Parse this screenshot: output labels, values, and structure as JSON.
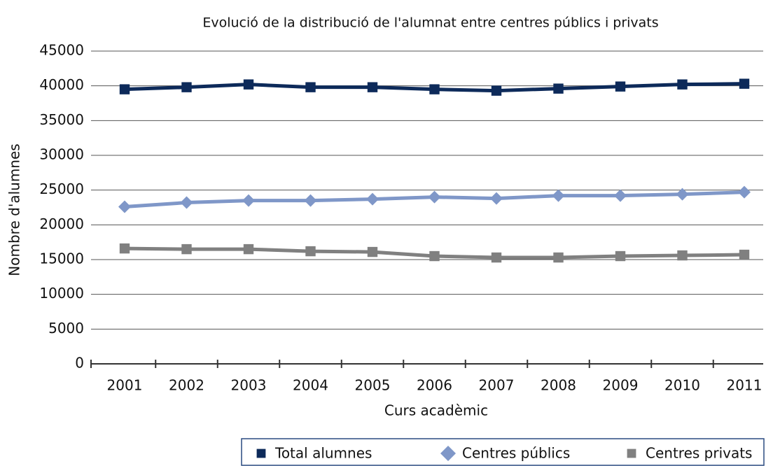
{
  "chart_data": {
    "type": "line",
    "title": "Evolució de la distribució de l'alumnat entre centres públics i privats",
    "x_label": "Curs acadèmic",
    "y_label": "Nombre d'alumnes",
    "categories": [
      "2001",
      "2002",
      "2003",
      "2004",
      "2005",
      "2006",
      "2007",
      "2008",
      "2009",
      "2010",
      "2011"
    ],
    "series": [
      {
        "name": "Total alumnes",
        "color": "#0d2a5a",
        "marker": "square",
        "values": [
          39500,
          39800,
          40200,
          39800,
          39800,
          39500,
          39300,
          39600,
          39900,
          40200,
          40300
        ]
      },
      {
        "name": "Centres públics",
        "color": "#7f97c8",
        "marker": "diamond",
        "values": [
          22600,
          23200,
          23500,
          23500,
          23700,
          24000,
          23800,
          24200,
          24200,
          24400,
          24700
        ]
      },
      {
        "name": "Centres privats",
        "color": "#808080",
        "marker": "square",
        "values": [
          16600,
          16500,
          16500,
          16200,
          16100,
          15500,
          15300,
          15300,
          15500,
          15600,
          15700
        ]
      }
    ],
    "ylim": [
      0,
      45000
    ],
    "yticks": [
      0,
      5000,
      10000,
      15000,
      20000,
      25000,
      30000,
      35000,
      40000,
      45000
    ],
    "grid": true,
    "legend": "bottom-right"
  }
}
